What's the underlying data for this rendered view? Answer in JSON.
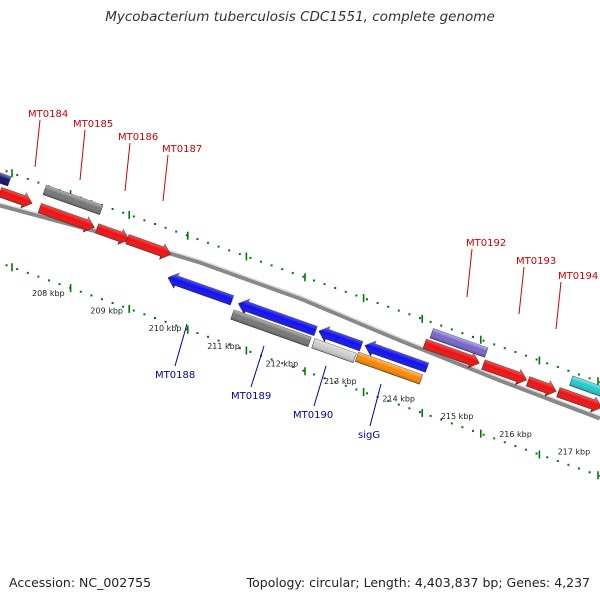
{
  "title": "Mycobacterium tuberculosis CDC1551, complete genome",
  "footer": {
    "accession": "Accession: NC_002755",
    "topology": "Topology: circular; Length: 4,403,837 bp; Genes: 4,237"
  },
  "colors": {
    "label_forward": "#cc0000",
    "label_reverse": "#0000aa",
    "tick": "#007700",
    "backbone": "#888888"
  },
  "kbp_labels": [
    "208 kbp",
    "209 kbp",
    "210 kbp",
    "211 kbp",
    "212 kbp",
    "213 kbp",
    "214 kbp",
    "215 kbp",
    "216 kbp",
    "217 kbp"
  ],
  "gene_labels": {
    "forward": [
      "MT0184",
      "MT0185",
      "MT0186",
      "MT0187",
      "MT0192",
      "MT0193",
      "MT0194"
    ],
    "reverse": [
      "MT0188",
      "MT0189",
      "MT0190",
      "sigG"
    ]
  }
}
